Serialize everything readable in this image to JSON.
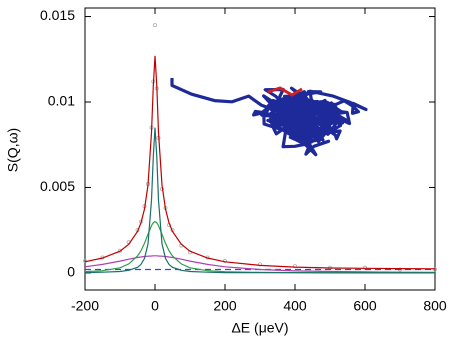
{
  "chart_data": {
    "type": "line",
    "x_label": "ΔE (μeV)",
    "y_label": "S(Q,ω)",
    "xlim": [
      -200,
      800
    ],
    "xticks": [
      -200,
      0,
      200,
      400,
      600,
      800
    ],
    "ylim": [
      -0.001,
      0.0155
    ],
    "yticks": [
      0,
      0.005,
      0.01,
      0.015
    ],
    "x": [
      -200,
      -150,
      -100,
      -75,
      -50,
      -40,
      -30,
      -20,
      -10,
      -5,
      0,
      5,
      10,
      20,
      30,
      40,
      50,
      75,
      100,
      150,
      200,
      300,
      400,
      500,
      600,
      700,
      800
    ],
    "series": [
      {
        "color": "#b0b0b0",
        "style": "points",
        "values": [
          0.0007,
          0.0009,
          0.0013,
          0.0018,
          0.0025,
          0.003,
          0.0039,
          0.0052,
          0.0085,
          0.0112,
          0.0145,
          0.0108,
          0.0079,
          0.0049,
          0.0038,
          0.0028,
          0.0025,
          0.0016,
          0.0012,
          0.0009,
          0.0007,
          0.0005,
          0.0004,
          0.0003,
          0.0003,
          0.0002,
          0.0002
        ]
      },
      {
        "color": "#3050c0",
        "style": "dashed",
        "values": [
          0.0002,
          0.0002,
          0.0002,
          0.0002,
          0.0002,
          0.0002,
          0.0002,
          0.0002,
          0.0002,
          0.0002,
          0.0002,
          0.0002,
          0.0002,
          0.0002,
          0.0002,
          0.0002,
          0.0002,
          0.0002,
          0.0002,
          0.0002,
          0.0002,
          0.0002,
          0.0002,
          0.0002,
          0.0002,
          0.0002,
          0.0002
        ]
      },
      {
        "color": "#b040b0",
        "style": "solid",
        "values": [
          0.00036,
          0.0005,
          0.00069,
          0.0008,
          0.0009,
          0.00093,
          0.00096,
          0.00098,
          0.00099,
          0.001,
          0.001,
          0.001,
          0.00099,
          0.00098,
          0.00096,
          0.00093,
          0.0009,
          0.0008,
          0.00069,
          0.0005,
          0.00036,
          0.0002,
          0.00012,
          8e-05,
          6e-05,
          4e-05,
          3e-05
        ]
      },
      {
        "color": "#2e9e4a",
        "style": "solid",
        "values": [
          7e-05,
          0.00013,
          0.0003,
          0.00053,
          0.00099,
          0.0013,
          0.00173,
          0.00226,
          0.00277,
          0.00294,
          0.003,
          0.00294,
          0.00277,
          0.00226,
          0.00173,
          0.0013,
          0.00099,
          0.00053,
          0.0003,
          0.00013,
          7e-05,
          3e-05,
          2e-05,
          1e-05,
          1e-05,
          1e-05,
          1e-05
        ]
      },
      {
        "color": "#1a6f6a",
        "style": "solid",
        "values": [
          2e-05,
          4e-05,
          8e-05,
          0.00015,
          0.00033,
          0.0005,
          0.00085,
          0.0017,
          0.00425,
          0.0068,
          0.0085,
          0.0068,
          0.00425,
          0.0017,
          0.00085,
          0.0005,
          0.00033,
          0.00015,
          8e-05,
          4e-05,
          2e-05,
          1e-05,
          1e-05,
          0,
          0,
          0,
          0
        ]
      },
      {
        "color": "#c00000",
        "style": "solid",
        "values": [
          0.00065,
          0.00087,
          0.00127,
          0.00168,
          0.00242,
          0.00293,
          0.00374,
          0.00514,
          0.00821,
          0.01094,
          0.0127,
          0.01094,
          0.00821,
          0.00514,
          0.00374,
          0.00293,
          0.00242,
          0.00168,
          0.00127,
          0.00087,
          0.00065,
          0.00044,
          0.00034,
          0.00029,
          0.00027,
          0.00025,
          0.00024
        ]
      }
    ]
  }
}
